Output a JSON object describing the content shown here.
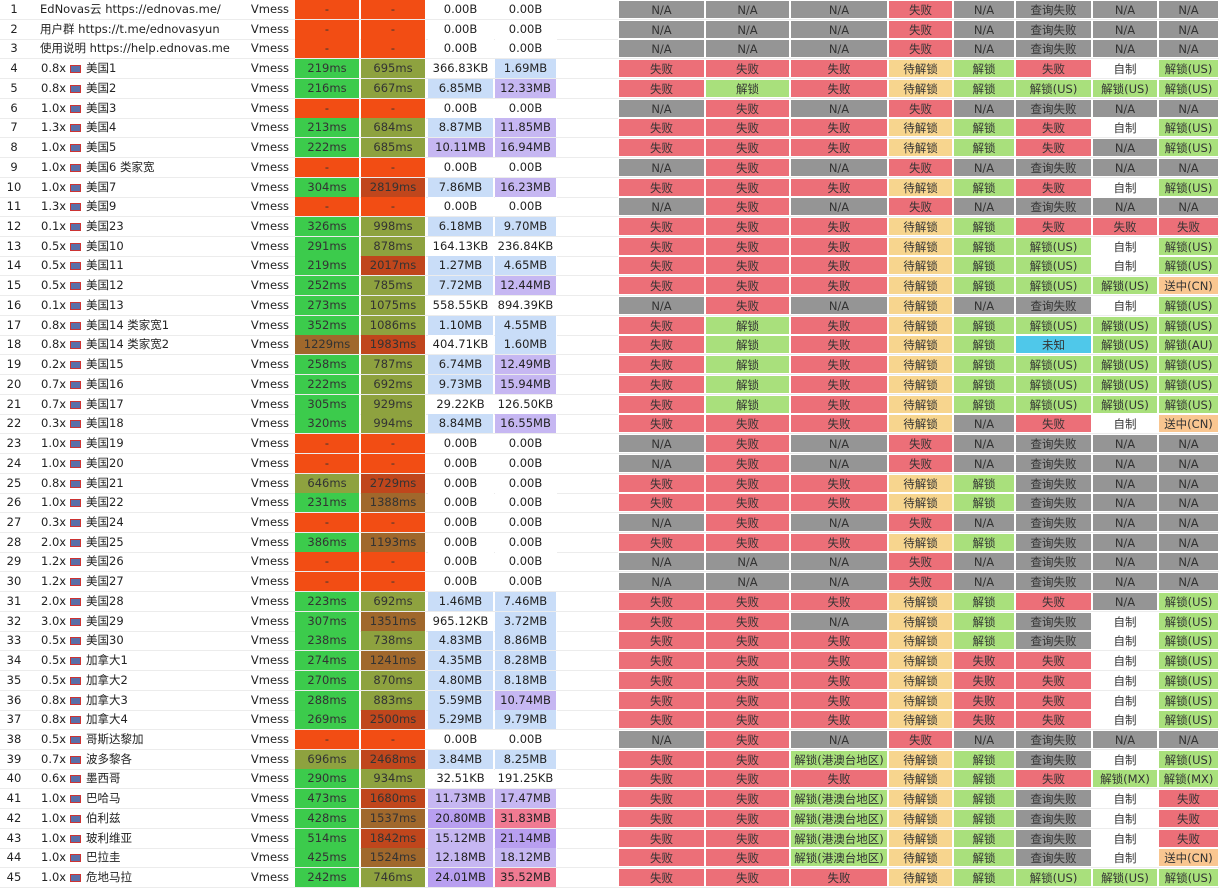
{
  "table": {
    "rows": [
      [
        1,
        null,
        "EdNovas云 https://ednovas.me/",
        "Vmess",
        "-",
        "-",
        "0.00B",
        "0.00B",
        "N/A",
        "N/A",
        "N/A",
        "失败",
        "N/A",
        "查询失败",
        "N/A",
        "N/A"
      ],
      [
        2,
        null,
        "用户群 https://t.me/ednovasyun",
        "Vmess",
        "-",
        "-",
        "0.00B",
        "0.00B",
        "N/A",
        "N/A",
        "N/A",
        "失败",
        "N/A",
        "查询失败",
        "N/A",
        "N/A"
      ],
      [
        3,
        null,
        "使用说明 https://help.ednovas.me",
        "Vmess",
        "-",
        "-",
        "0.00B",
        "0.00B",
        "N/A",
        "N/A",
        "N/A",
        "失败",
        "N/A",
        "查询失败",
        "N/A",
        "N/A"
      ],
      [
        4,
        "0.8x",
        "美国1",
        "Vmess",
        "219ms",
        "695ms",
        "366.83KB",
        "1.69MB",
        "失败",
        "失败",
        "失败",
        "待解锁",
        "解锁",
        "失败",
        "自制",
        "解锁(US)"
      ],
      [
        5,
        "0.8x",
        "美国2",
        "Vmess",
        "216ms",
        "667ms",
        "6.85MB",
        "12.33MB",
        "失败",
        "解锁",
        "失败",
        "待解锁",
        "解锁",
        "解锁(US)",
        "解锁(US)",
        "解锁(US)"
      ],
      [
        6,
        "1.0x",
        "美国3",
        "Vmess",
        "-",
        "-",
        "0.00B",
        "0.00B",
        "N/A",
        "失败",
        "N/A",
        "失败",
        "N/A",
        "查询失败",
        "N/A",
        "N/A"
      ],
      [
        7,
        "1.3x",
        "美国4",
        "Vmess",
        "213ms",
        "684ms",
        "8.87MB",
        "11.85MB",
        "失败",
        "失败",
        "失败",
        "待解锁",
        "解锁",
        "失败",
        "自制",
        "解锁(US)"
      ],
      [
        8,
        "1.0x",
        "美国5",
        "Vmess",
        "222ms",
        "685ms",
        "10.11MB",
        "16.94MB",
        "失败",
        "失败",
        "失败",
        "待解锁",
        "解锁",
        "失败",
        "N/A",
        "解锁(US)"
      ],
      [
        9,
        "1.0x",
        "美国6 类家宽",
        "Vmess",
        "-",
        "-",
        "0.00B",
        "0.00B",
        "N/A",
        "失败",
        "N/A",
        "失败",
        "N/A",
        "查询失败",
        "N/A",
        "N/A"
      ],
      [
        10,
        "1.0x",
        "美国7",
        "Vmess",
        "304ms",
        "2819ms",
        "7.86MB",
        "16.23MB",
        "失败",
        "失败",
        "失败",
        "待解锁",
        "解锁",
        "失败",
        "自制",
        "解锁(US)"
      ],
      [
        11,
        "1.3x",
        "美国9",
        "Vmess",
        "-",
        "-",
        "0.00B",
        "0.00B",
        "N/A",
        "失败",
        "N/A",
        "失败",
        "N/A",
        "查询失败",
        "N/A",
        "N/A"
      ],
      [
        12,
        "0.1x",
        "美国23",
        "Vmess",
        "326ms",
        "998ms",
        "6.18MB",
        "9.70MB",
        "失败",
        "失败",
        "失败",
        "待解锁",
        "解锁",
        "失败",
        "失败",
        "失败"
      ],
      [
        13,
        "0.5x",
        "美国10",
        "Vmess",
        "291ms",
        "878ms",
        "164.13KB",
        "236.84KB",
        "失败",
        "失败",
        "失败",
        "待解锁",
        "解锁",
        "解锁(US)",
        "自制",
        "解锁(US)"
      ],
      [
        14,
        "0.5x",
        "美国11",
        "Vmess",
        "219ms",
        "2017ms",
        "1.27MB",
        "4.65MB",
        "失败",
        "失败",
        "失败",
        "待解锁",
        "解锁",
        "解锁(US)",
        "自制",
        "解锁(US)"
      ],
      [
        15,
        "0.5x",
        "美国12",
        "Vmess",
        "252ms",
        "785ms",
        "7.72MB",
        "12.44MB",
        "失败",
        "失败",
        "失败",
        "待解锁",
        "解锁",
        "解锁(US)",
        "解锁(US)",
        "送中(CN)"
      ],
      [
        16,
        "0.1x",
        "美国13",
        "Vmess",
        "273ms",
        "1075ms",
        "558.55KB",
        "894.39KB",
        "N/A",
        "失败",
        "N/A",
        "待解锁",
        "N/A",
        "查询失败",
        "自制",
        "解锁(US)"
      ],
      [
        17,
        "0.8x",
        "美国14 类家宽1",
        "Vmess",
        "352ms",
        "1086ms",
        "1.10MB",
        "4.55MB",
        "失败",
        "解锁",
        "失败",
        "待解锁",
        "解锁",
        "解锁(US)",
        "解锁(US)",
        "解锁(US)"
      ],
      [
        18,
        "0.8x",
        "美国14 类家宽2",
        "Vmess",
        "1229ms",
        "1983ms",
        "404.71KB",
        "1.60MB",
        "失败",
        "解锁",
        "失败",
        "待解锁",
        "解锁",
        "未知",
        "解锁(US)",
        "解锁(AU)"
      ],
      [
        19,
        "0.2x",
        "美国15",
        "Vmess",
        "258ms",
        "787ms",
        "6.74MB",
        "12.49MB",
        "失败",
        "解锁",
        "失败",
        "待解锁",
        "解锁",
        "解锁(US)",
        "解锁(US)",
        "解锁(US)"
      ],
      [
        20,
        "0.7x",
        "美国16",
        "Vmess",
        "222ms",
        "692ms",
        "9.73MB",
        "15.94MB",
        "失败",
        "解锁",
        "失败",
        "待解锁",
        "解锁",
        "解锁(US)",
        "解锁(US)",
        "解锁(US)"
      ],
      [
        21,
        "0.7x",
        "美国17",
        "Vmess",
        "305ms",
        "929ms",
        "29.22KB",
        "126.50KB",
        "失败",
        "解锁",
        "失败",
        "待解锁",
        "解锁",
        "解锁(US)",
        "解锁(US)",
        "解锁(US)"
      ],
      [
        22,
        "0.3x",
        "美国18",
        "Vmess",
        "320ms",
        "994ms",
        "8.84MB",
        "16.55MB",
        "失败",
        "失败",
        "失败",
        "待解锁",
        "N/A",
        "失败",
        "自制",
        "送中(CN)"
      ],
      [
        23,
        "1.0x",
        "美国19",
        "Vmess",
        "-",
        "-",
        "0.00B",
        "0.00B",
        "N/A",
        "失败",
        "N/A",
        "失败",
        "N/A",
        "查询失败",
        "N/A",
        "N/A"
      ],
      [
        24,
        "1.0x",
        "美国20",
        "Vmess",
        "-",
        "-",
        "0.00B",
        "0.00B",
        "N/A",
        "失败",
        "N/A",
        "失败",
        "N/A",
        "查询失败",
        "N/A",
        "N/A"
      ],
      [
        25,
        "0.8x",
        "美国21",
        "Vmess",
        "646ms",
        "2729ms",
        "0.00B",
        "0.00B",
        "失败",
        "失败",
        "失败",
        "待解锁",
        "解锁",
        "查询失败",
        "N/A",
        "N/A"
      ],
      [
        26,
        "1.0x",
        "美国22",
        "Vmess",
        "231ms",
        "1388ms",
        "0.00B",
        "0.00B",
        "失败",
        "失败",
        "失败",
        "待解锁",
        "解锁",
        "查询失败",
        "N/A",
        "N/A"
      ],
      [
        27,
        "0.3x",
        "美国24",
        "Vmess",
        "-",
        "-",
        "0.00B",
        "0.00B",
        "N/A",
        "失败",
        "N/A",
        "失败",
        "N/A",
        "查询失败",
        "N/A",
        "N/A"
      ],
      [
        28,
        "2.0x",
        "美国25",
        "Vmess",
        "386ms",
        "1193ms",
        "0.00B",
        "0.00B",
        "失败",
        "失败",
        "失败",
        "待解锁",
        "解锁",
        "查询失败",
        "N/A",
        "N/A"
      ],
      [
        29,
        "1.2x",
        "美国26",
        "Vmess",
        "-",
        "-",
        "0.00B",
        "0.00B",
        "N/A",
        "N/A",
        "N/A",
        "失败",
        "N/A",
        "查询失败",
        "N/A",
        "N/A"
      ],
      [
        30,
        "1.2x",
        "美国27",
        "Vmess",
        "-",
        "-",
        "0.00B",
        "0.00B",
        "N/A",
        "N/A",
        "N/A",
        "失败",
        "N/A",
        "查询失败",
        "N/A",
        "N/A"
      ],
      [
        31,
        "2.0x",
        "美国28",
        "Vmess",
        "223ms",
        "692ms",
        "1.46MB",
        "7.46MB",
        "失败",
        "失败",
        "失败",
        "待解锁",
        "解锁",
        "失败",
        "N/A",
        "解锁(US)"
      ],
      [
        32,
        "3.0x",
        "美国29",
        "Vmess",
        "307ms",
        "1351ms",
        "965.12KB",
        "3.72MB",
        "失败",
        "失败",
        "N/A",
        "待解锁",
        "解锁",
        "查询失败",
        "自制",
        "解锁(US)"
      ],
      [
        33,
        "0.5x",
        "美国30",
        "Vmess",
        "238ms",
        "738ms",
        "4.83MB",
        "8.86MB",
        "失败",
        "失败",
        "失败",
        "待解锁",
        "解锁",
        "查询失败",
        "自制",
        "解锁(US)"
      ],
      [
        34,
        "0.5x",
        "加拿大1",
        "Vmess",
        "274ms",
        "1241ms",
        "4.35MB",
        "8.28MB",
        "失败",
        "失败",
        "失败",
        "待解锁",
        "失败",
        "失败",
        "自制",
        "解锁(US)"
      ],
      [
        35,
        "0.5x",
        "加拿大2",
        "Vmess",
        "270ms",
        "870ms",
        "4.80MB",
        "8.18MB",
        "失败",
        "失败",
        "失败",
        "待解锁",
        "失败",
        "失败",
        "自制",
        "解锁(US)"
      ],
      [
        36,
        "0.8x",
        "加拿大3",
        "Vmess",
        "288ms",
        "883ms",
        "5.59MB",
        "10.74MB",
        "失败",
        "失败",
        "失败",
        "待解锁",
        "失败",
        "失败",
        "自制",
        "解锁(US)"
      ],
      [
        37,
        "0.8x",
        "加拿大4",
        "Vmess",
        "269ms",
        "2500ms",
        "5.29MB",
        "9.79MB",
        "失败",
        "失败",
        "失败",
        "待解锁",
        "失败",
        "失败",
        "自制",
        "解锁(US)"
      ],
      [
        38,
        "0.5x",
        "哥斯达黎加",
        "Vmess",
        "-",
        "-",
        "0.00B",
        "0.00B",
        "N/A",
        "失败",
        "N/A",
        "失败",
        "N/A",
        "查询失败",
        "N/A",
        "N/A"
      ],
      [
        39,
        "0.7x",
        "波多黎各",
        "Vmess",
        "696ms",
        "2468ms",
        "3.84MB",
        "8.25MB",
        "失败",
        "失败",
        "解锁(港澳台地区)",
        "待解锁",
        "解锁",
        "查询失败",
        "自制",
        "解锁(US)"
      ],
      [
        40,
        "0.6x",
        "墨西哥",
        "Vmess",
        "290ms",
        "934ms",
        "32.51KB",
        "191.25KB",
        "失败",
        "失败",
        "失败",
        "待解锁",
        "解锁",
        "失败",
        "解锁(MX)",
        "解锁(MX)"
      ],
      [
        41,
        "1.0x",
        "巴哈马",
        "Vmess",
        "473ms",
        "1680ms",
        "11.73MB",
        "17.47MB",
        "失败",
        "失败",
        "解锁(港澳台地区)",
        "待解锁",
        "解锁",
        "查询失败",
        "自制",
        "失败"
      ],
      [
        42,
        "1.0x",
        "伯利兹",
        "Vmess",
        "428ms",
        "1537ms",
        "20.80MB",
        "31.83MB",
        "失败",
        "失败",
        "解锁(港澳台地区)",
        "待解锁",
        "解锁",
        "查询失败",
        "自制",
        "失败"
      ],
      [
        43,
        "1.0x",
        "玻利维亚",
        "Vmess",
        "514ms",
        "1842ms",
        "15.12MB",
        "21.14MB",
        "失败",
        "失败",
        "解锁(港澳台地区)",
        "待解锁",
        "解锁",
        "查询失败",
        "自制",
        "失败"
      ],
      [
        44,
        "1.0x",
        "巴拉圭",
        "Vmess",
        "425ms",
        "1524ms",
        "12.18MB",
        "18.12MB",
        "失败",
        "失败",
        "解锁(港澳台地区)",
        "待解锁",
        "解锁",
        "查询失败",
        "自制",
        "送中(CN)"
      ],
      [
        45,
        "1.0x",
        "危地马拉",
        "Vmess",
        "242ms",
        "746ms",
        "24.01MB",
        "35.52MB",
        "失败",
        "失败",
        "失败",
        "待解锁",
        "解锁",
        "解锁(US)",
        "解锁(US)",
        "解锁(US)"
      ]
    ]
  }
}
